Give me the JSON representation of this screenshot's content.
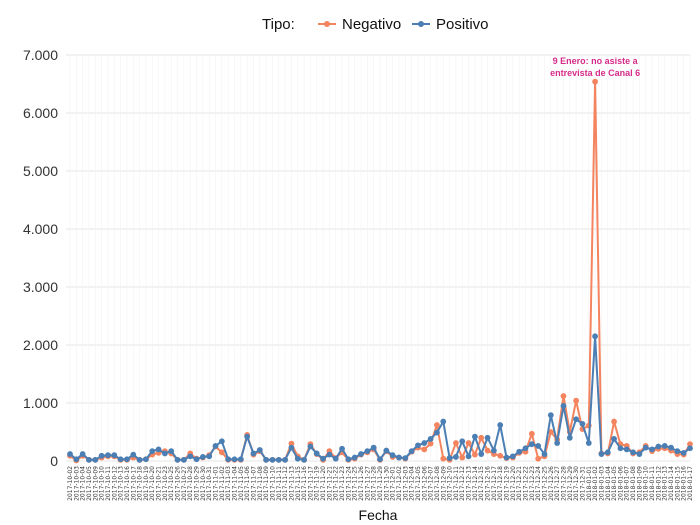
{
  "chart_data": {
    "type": "line",
    "xlabel": "Fecha",
    "ylabel": "",
    "ylim": [
      0,
      7000
    ],
    "yticks": [
      0,
      1000,
      2000,
      3000,
      4000,
      5000,
      6000,
      7000
    ],
    "ytick_labels": [
      "0",
      "1.000",
      "2.000",
      "3.000",
      "4.000",
      "5.000",
      "6.000",
      "7.000"
    ],
    "grid": true,
    "legend": {
      "title": "Tipo:",
      "position": "top"
    },
    "x_tick_labels": [
      "2017-10-02",
      "2017-10-03",
      "2017-10-04",
      "2017-10-05",
      "2017-10-09",
      "2017-10-10",
      "2017-10-11",
      "2017-10-12",
      "2017-10-13",
      "2017-10-16",
      "2017-10-17",
      "2017-10-18",
      "2017-10-19",
      "2017-10-20",
      "2017-10-21",
      "2017-10-23",
      "2017-10-25",
      "2017-10-26",
      "2017-10-27",
      "2017-10-28",
      "2017-10-29",
      "2017-10-30",
      "2017-10-31",
      "2017-11-01",
      "2017-11-02",
      "2017-11-03",
      "2017-11-04",
      "2017-11-05",
      "2017-11-06",
      "2017-11-07",
      "2017-11-08",
      "2017-11-09",
      "2017-11-10",
      "2017-11-11",
      "2017-11-12",
      "2017-11-13",
      "2017-11-15",
      "2017-11-16",
      "2017-11-17",
      "2017-11-19",
      "2017-11-20",
      "2017-11-21",
      "2017-11-22",
      "2017-11-23",
      "2017-11-24",
      "2017-11-25",
      "2017-11-26",
      "2017-11-27",
      "2017-11-28",
      "2017-11-29",
      "2017-11-30",
      "2017-12-01",
      "2017-12-02",
      "2017-12-03",
      "2017-12-04",
      "2017-12-05",
      "2017-12-06",
      "2017-12-07",
      "2017-12-08",
      "2017-12-09",
      "2017-12-10",
      "2017-12-11",
      "2017-12-12",
      "2017-12-13",
      "2017-12-14",
      "2017-12-15",
      "2017-12-16",
      "2017-12-17",
      "2017-12-18",
      "2017-12-19",
      "2017-12-20",
      "2017-12-21",
      "2017-12-22",
      "2017-12-23",
      "2017-12-24",
      "2017-12-25",
      "2017-12-26",
      "2017-12-27",
      "2017-12-28",
      "2017-12-29",
      "2017-12-30",
      "2017-12-31",
      "2018-01-01",
      "2018-01-02",
      "2018-01-03",
      "2018-01-04",
      "2018-01-05",
      "2018-01-06",
      "2018-01-07",
      "2018-01-08",
      "2018-01-09",
      "2018-01-10",
      "2018-01-11",
      "2018-01-12",
      "2018-01-13",
      "2018-01-14",
      "2018-01-15",
      "2018-01-16",
      "2018-01-17"
    ],
    "series": [
      {
        "name": "Negativo",
        "color": "#f4845f",
        "values": [
          90,
          10,
          90,
          20,
          20,
          60,
          80,
          80,
          20,
          20,
          60,
          20,
          30,
          110,
          140,
          170,
          130,
          20,
          20,
          130,
          40,
          60,
          100,
          250,
          150,
          20,
          20,
          20,
          450,
          110,
          170,
          20,
          20,
          20,
          20,
          300,
          80,
          20,
          290,
          120,
          20,
          170,
          50,
          150,
          20,
          40,
          110,
          150,
          200,
          20,
          170,
          70,
          60,
          40,
          160,
          230,
          200,
          300,
          620,
          40,
          20,
          310,
          60,
          310,
          110,
          400,
          180,
          120,
          90,
          50,
          60,
          140,
          160,
          470,
          40,
          80,
          500,
          370,
          1120,
          500,
          1040,
          550,
          610,
          6540,
          130,
          130,
          680,
          290,
          260,
          130,
          150,
          260,
          170,
          210,
          220,
          180,
          120,
          110,
          290
        ]
      },
      {
        "name": "Positivo",
        "color": "#4b7fb4",
        "values": [
          120,
          30,
          120,
          20,
          20,
          90,
          100,
          100,
          30,
          30,
          110,
          20,
          30,
          170,
          200,
          130,
          170,
          20,
          20,
          80,
          30,
          70,
          80,
          260,
          340,
          30,
          30,
          30,
          420,
          130,
          190,
          20,
          20,
          20,
          20,
          230,
          40,
          20,
          250,
          130,
          40,
          110,
          40,
          210,
          30,
          60,
          120,
          170,
          230,
          30,
          180,
          100,
          60,
          50,
          170,
          270,
          310,
          380,
          490,
          680,
          50,
          70,
          340,
          80,
          420,
          120,
          400,
          180,
          620,
          60,
          80,
          160,
          220,
          290,
          260,
          120,
          790,
          310,
          950,
          400,
          720,
          640,
          310,
          2150,
          120,
          150,
          380,
          220,
          200,
          150,
          120,
          230,
          200,
          250,
          260,
          230,
          170,
          140,
          220
        ]
      }
    ],
    "annotations": [
      {
        "text_lines": [
          "9 Enero: no asiste a",
          "entrevista de Canal 6"
        ]
      }
    ]
  }
}
